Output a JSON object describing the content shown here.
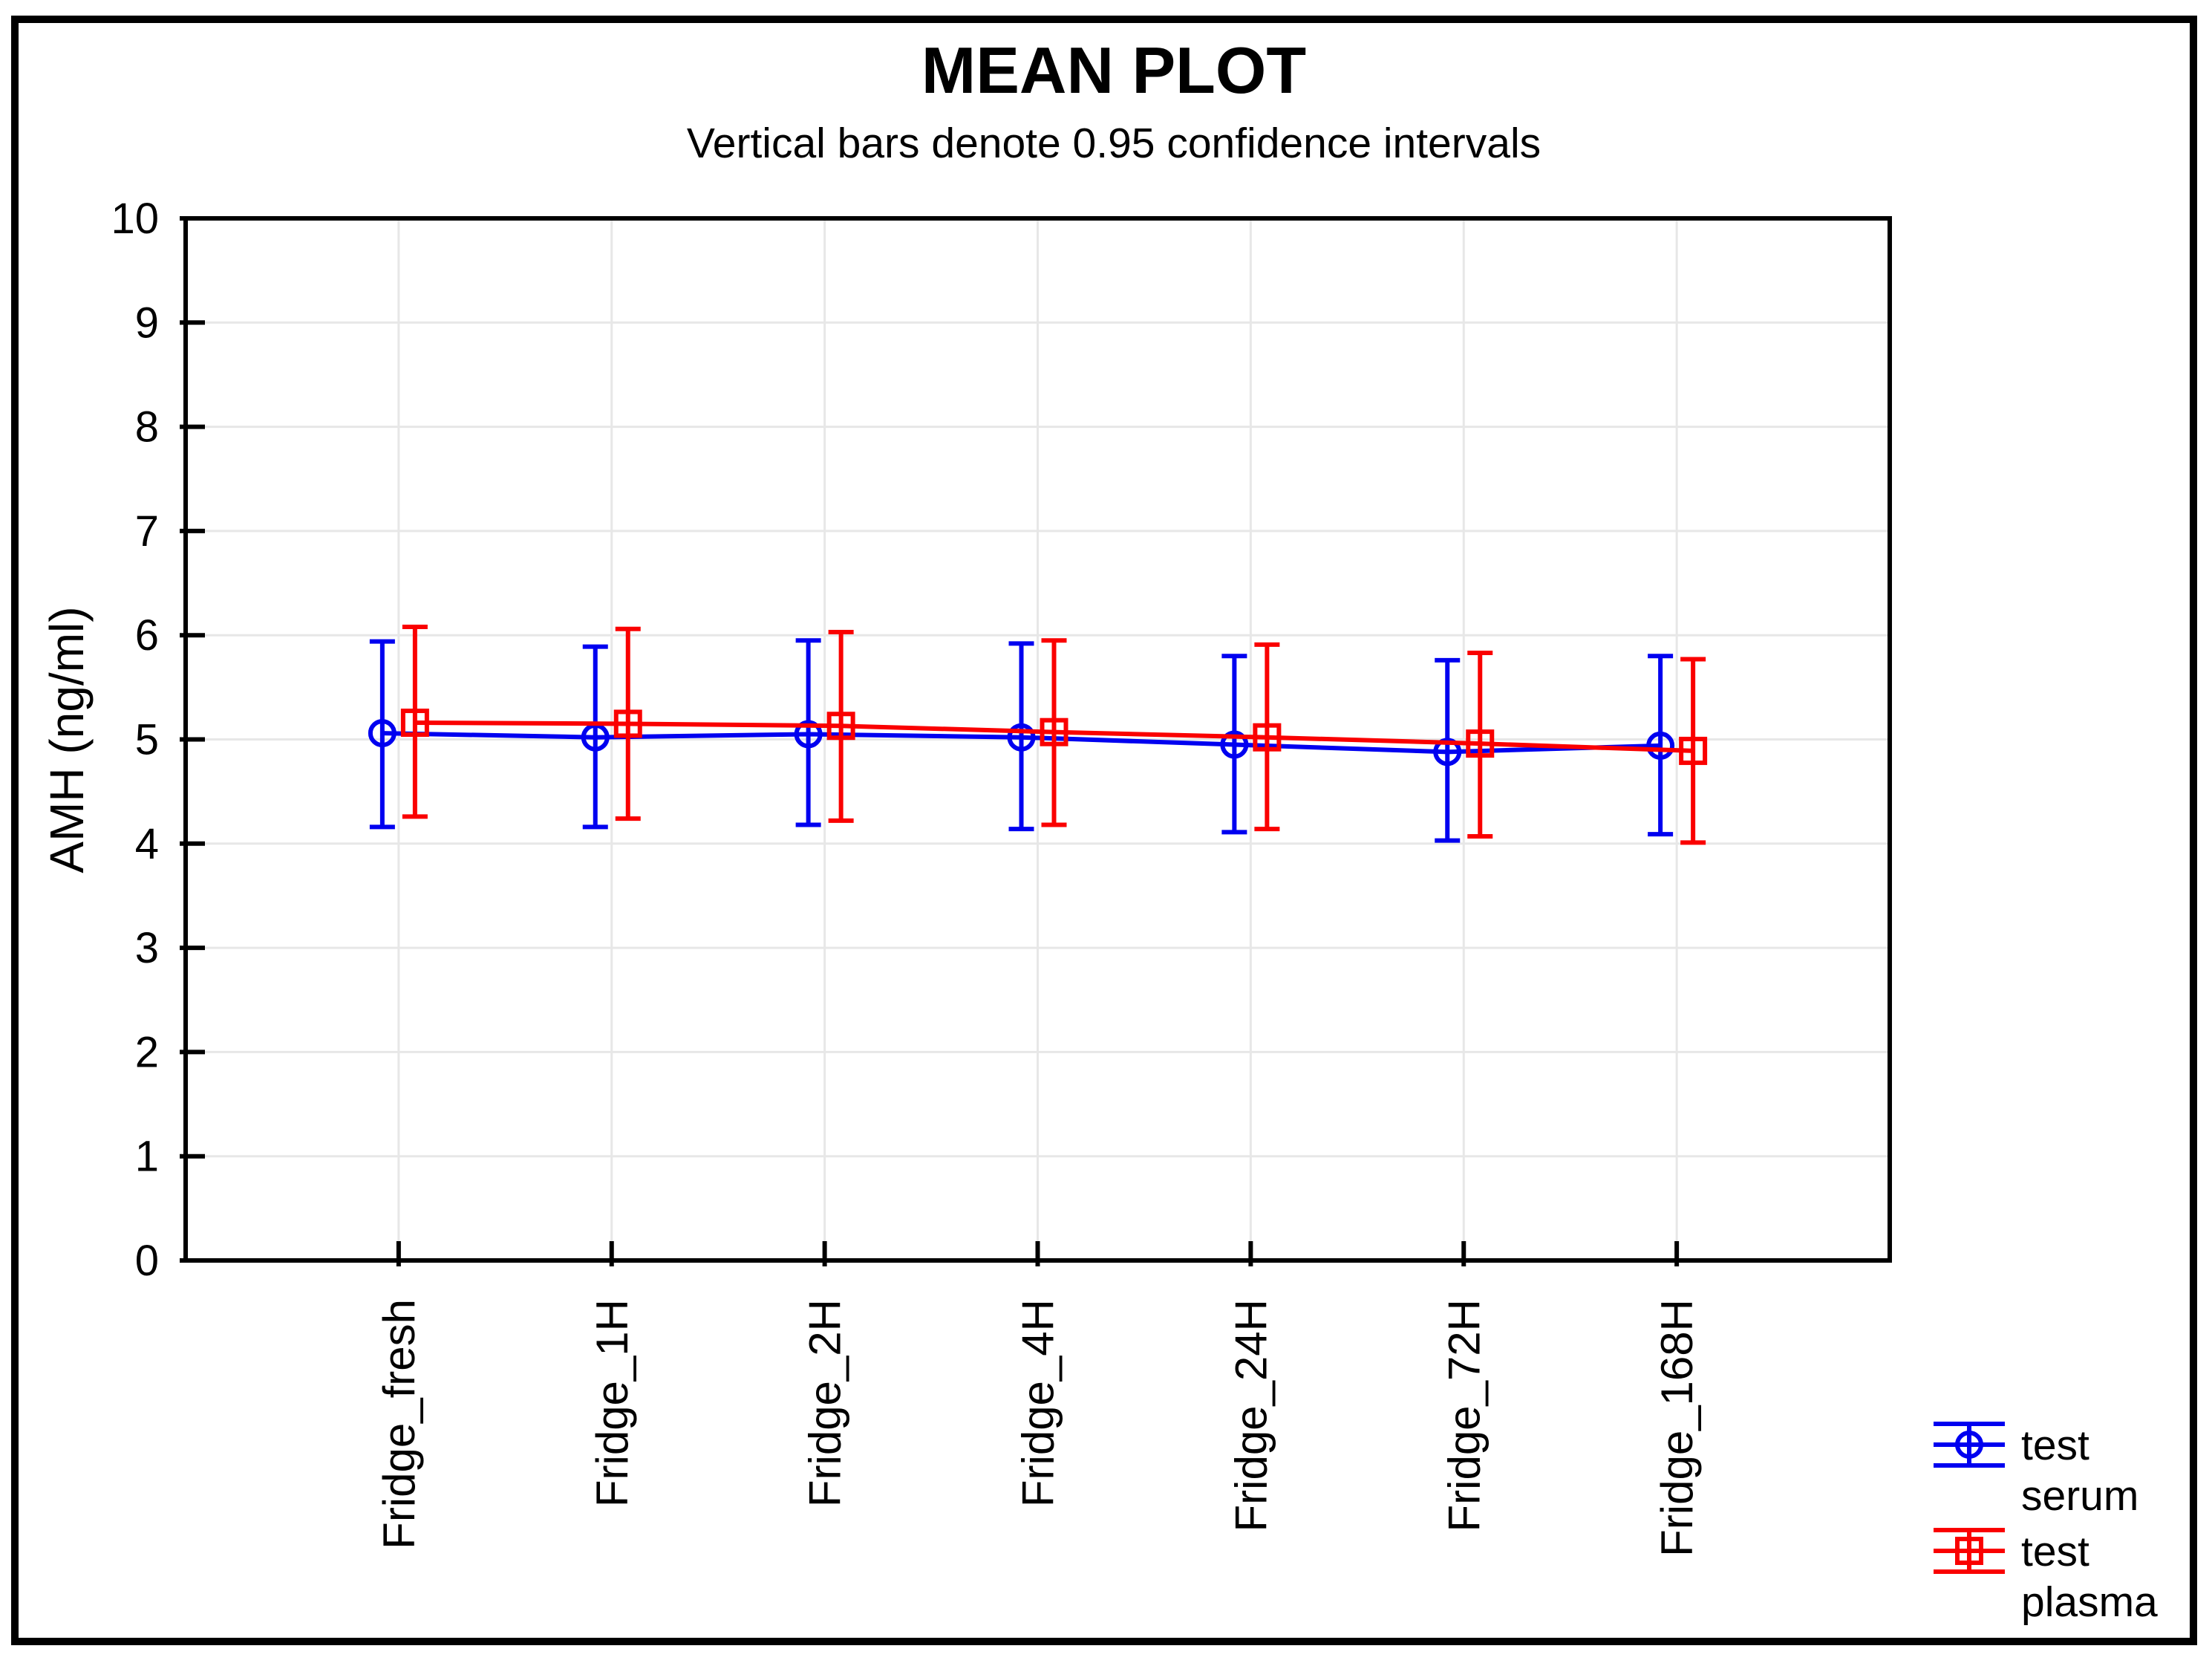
{
  "figure": {
    "title": "MEAN PLOT",
    "subtitle": "Vertical bars denote 0.95 confidence intervals"
  },
  "chart_data": {
    "type": "line",
    "title": "MEAN PLOT",
    "subtitle": "Vertical bars denote 0.95 confidence intervals",
    "xlabel": "",
    "ylabel": "AMH (ng/ml)",
    "ylim": [
      0,
      10
    ],
    "ytick_step": 1,
    "grid": true,
    "error_bars": "0.95 confidence intervals",
    "legend_position": "bottom-right",
    "categories": [
      "Fridge_fresh",
      "Fridge_1H",
      "Fridge_2H",
      "Fridge_4H",
      "Fridge_24H",
      "Fridge_72H",
      "Fridge_168H"
    ],
    "series": [
      {
        "name": "test serum",
        "legend_lines": [
          "test",
          "serum"
        ],
        "color": "#0000f0",
        "marker": "circle",
        "means": [
          5.06,
          5.02,
          5.05,
          5.02,
          4.95,
          4.88,
          4.94
        ],
        "ci_low": [
          4.16,
          4.16,
          4.18,
          4.14,
          4.11,
          4.03,
          4.09
        ],
        "ci_high": [
          5.94,
          5.89,
          5.95,
          5.92,
          5.8,
          5.76,
          5.8
        ]
      },
      {
        "name": "test plasma",
        "legend_lines": [
          "test",
          "plasma"
        ],
        "color": "#fa0000",
        "marker": "square",
        "means": [
          5.16,
          5.15,
          5.13,
          5.07,
          5.02,
          4.96,
          4.89
        ],
        "ci_low": [
          4.26,
          4.24,
          4.22,
          4.18,
          4.14,
          4.07,
          4.01
        ],
        "ci_high": [
          6.08,
          6.06,
          6.03,
          5.95,
          5.91,
          5.83,
          5.77
        ]
      }
    ],
    "yticks": [
      0,
      1,
      2,
      3,
      4,
      5,
      6,
      7,
      8,
      9,
      10
    ]
  },
  "colors": {
    "serum": "#0000f0",
    "plasma": "#fa0000",
    "grid": "#e7e7e7",
    "axis": "#000000",
    "border": "#000000",
    "background": "#ffffff"
  }
}
